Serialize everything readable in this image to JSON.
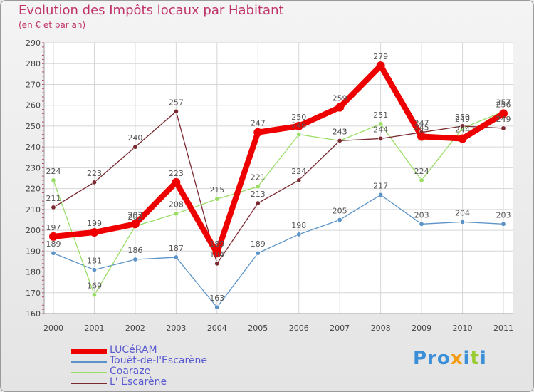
{
  "chart_data": {
    "type": "line",
    "title": "Evolution des Impôts locaux par Habitant",
    "subtitle": "(en € et par an)",
    "x": [
      "2000",
      "2001",
      "2002",
      "2003",
      "2004",
      "2005",
      "2006",
      "2007",
      "2008",
      "2009",
      "2010",
      "2011"
    ],
    "ylim": [
      160,
      290
    ],
    "yticks": [
      160,
      170,
      180,
      190,
      200,
      210,
      220,
      230,
      240,
      250,
      260,
      270,
      280,
      290
    ],
    "grid": true,
    "legend_position": "bottom-left",
    "series": [
      {
        "name": "Touët-de-l'Escarène",
        "color": "#5b93c7",
        "width": 1.3,
        "marker": true,
        "values": [
          189,
          181,
          186,
          187,
          163,
          189,
          198,
          205,
          217,
          203,
          204,
          203
        ]
      },
      {
        "name": "Coaraze",
        "color": "#99dd66",
        "width": 1.3,
        "marker": true,
        "values": [
          224,
          169,
          202,
          208,
          215,
          221,
          246,
          243,
          251,
          224,
          249,
          257
        ]
      },
      {
        "name": "L' Escarène",
        "color": "#7a2a30",
        "width": 1.3,
        "marker": true,
        "values": [
          211,
          223,
          240,
          257,
          184,
          213,
          224,
          243,
          244,
          247,
          250,
          249
        ]
      },
      {
        "name": "LUCéRAM",
        "color": "#ee0000",
        "width": 8,
        "marker": true,
        "values": [
          197,
          199,
          203,
          223,
          189,
          247,
          250,
          259,
          279,
          245,
          244,
          256
        ]
      }
    ],
    "legend_order": [
      "LUCéRAM",
      "Touët-de-l'Escarène",
      "Coaraze",
      "L' Escarène"
    ]
  },
  "brand": {
    "text": "Proxiti",
    "letter_colors": [
      "#3a8fd8",
      "#3a8fd8",
      "#3a8fd8",
      "#f39c12",
      "#3a8fd8",
      "#99cc33",
      "#3a8fd8"
    ]
  }
}
